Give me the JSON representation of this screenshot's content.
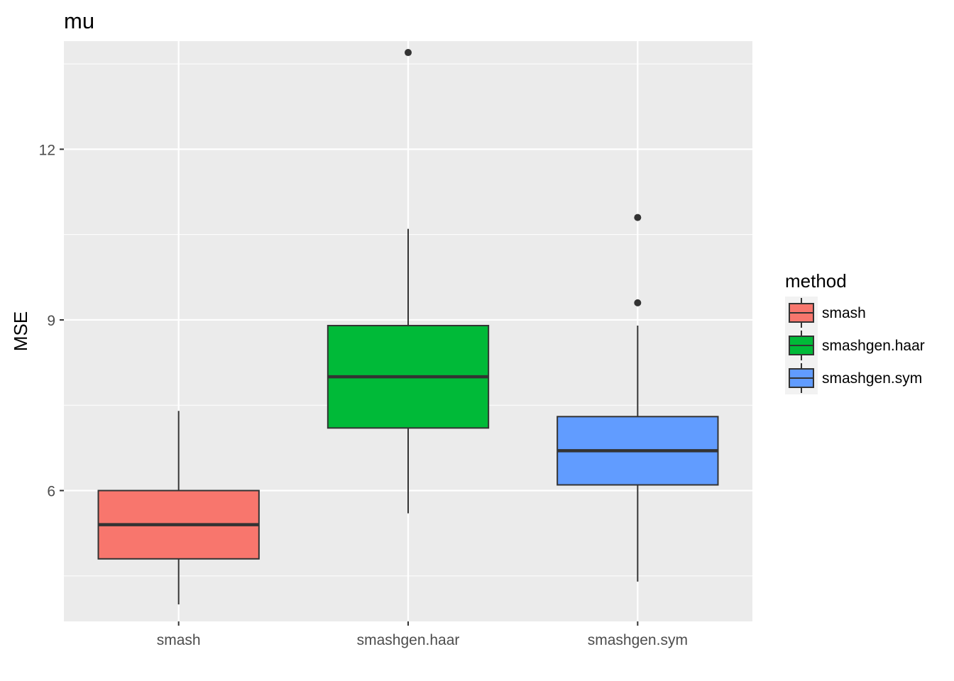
{
  "chart_data": {
    "type": "box",
    "title": "mu",
    "xlabel": "",
    "ylabel": "MSE",
    "ylim": [
      3.7,
      13.9
    ],
    "yticks": [
      6,
      9,
      12
    ],
    "grid": true,
    "legend_position": "right",
    "legend_title": "method",
    "categories": [
      "smash",
      "smashgen.haar",
      "smashgen.sym"
    ],
    "series": [
      {
        "name": "smash",
        "color": "#F8766D",
        "whisker_low": 4.0,
        "q1": 4.8,
        "median": 5.4,
        "q3": 6.0,
        "whisker_high": 7.4,
        "outliers": []
      },
      {
        "name": "smashgen.haar",
        "color": "#00BA38",
        "whisker_low": 5.6,
        "q1": 7.1,
        "median": 8.0,
        "q3": 8.9,
        "whisker_high": 10.6,
        "outliers": [
          13.7
        ]
      },
      {
        "name": "smashgen.sym",
        "color": "#619CFF",
        "whisker_low": 4.4,
        "q1": 6.1,
        "median": 6.7,
        "q3": 7.3,
        "whisker_high": 8.9,
        "outliers": [
          9.3,
          10.8
        ]
      }
    ]
  }
}
